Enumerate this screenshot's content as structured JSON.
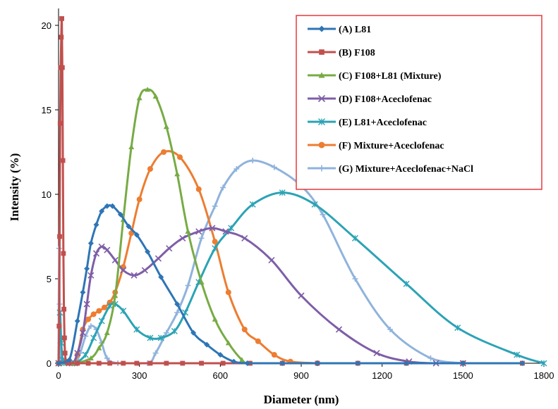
{
  "chart_data": {
    "type": "line",
    "xlabel": "Diameter (nm)",
    "ylabel": "Intensity (%)",
    "xlim": [
      0,
      1800
    ],
    "ylim": [
      0,
      21
    ],
    "xticks": [
      0,
      300,
      600,
      900,
      1200,
      1500,
      1800
    ],
    "yticks": [
      0,
      5,
      10,
      15,
      20
    ],
    "grid": false,
    "legend_position": "top-right",
    "series": [
      {
        "name": "(A) L81",
        "color": "#2e75b6",
        "marker": "diamond",
        "points": [
          [
            0,
            0
          ],
          [
            40,
            0.2
          ],
          [
            70,
            2.5
          ],
          [
            90,
            4.2
          ],
          [
            105,
            5.6
          ],
          [
            120,
            7.1
          ],
          [
            140,
            8.2
          ],
          [
            160,
            9.0
          ],
          [
            180,
            9.3
          ],
          [
            200,
            9.3
          ],
          [
            230,
            8.8
          ],
          [
            260,
            8.1
          ],
          [
            290,
            7.6
          ],
          [
            330,
            6.6
          ],
          [
            380,
            5.1
          ],
          [
            440,
            3.5
          ],
          [
            500,
            1.8
          ],
          [
            550,
            1.1
          ],
          [
            600,
            0.5
          ],
          [
            650,
            0.1
          ],
          [
            700,
            0
          ],
          [
            830,
            0
          ],
          [
            960,
            0
          ],
          [
            1110,
            0
          ],
          [
            1290,
            0
          ],
          [
            1500,
            0
          ],
          [
            1720,
            0
          ]
        ]
      },
      {
        "name": "(B) F108",
        "color": "#c0504d",
        "marker": "square",
        "points": [
          [
            0,
            0
          ],
          [
            2,
            2.2
          ],
          [
            4,
            7.5
          ],
          [
            6,
            14.2
          ],
          [
            8,
            17.5
          ],
          [
            10,
            19.3
          ],
          [
            12,
            20.4
          ],
          [
            14,
            17.5
          ],
          [
            16,
            12.0
          ],
          [
            18,
            6.5
          ],
          [
            20,
            3.2
          ],
          [
            22,
            1.5
          ],
          [
            24,
            0.6
          ],
          [
            28,
            0.1
          ],
          [
            35,
            0
          ],
          [
            70,
            0
          ],
          [
            110,
            0
          ],
          [
            150,
            0
          ],
          [
            190,
            0
          ],
          [
            240,
            0
          ],
          [
            290,
            0
          ],
          [
            340,
            0
          ],
          [
            400,
            0
          ],
          [
            460,
            0
          ],
          [
            530,
            0
          ],
          [
            610,
            0
          ],
          [
            710,
            0
          ],
          [
            830,
            0
          ],
          [
            960,
            0
          ],
          [
            1110,
            0
          ],
          [
            1290,
            0
          ],
          [
            1500,
            0
          ],
          [
            1720,
            0
          ]
        ]
      },
      {
        "name": "(C) F108+L81 (Mixture)",
        "color": "#77ab45",
        "marker": "triangle",
        "points": [
          [
            0,
            0
          ],
          [
            60,
            0
          ],
          [
            120,
            0.3
          ],
          [
            150,
            0.9
          ],
          [
            180,
            1.8
          ],
          [
            210,
            4.0
          ],
          [
            240,
            8.5
          ],
          [
            270,
            12.8
          ],
          [
            300,
            15.7
          ],
          [
            330,
            16.2
          ],
          [
            360,
            15.8
          ],
          [
            400,
            14.0
          ],
          [
            440,
            11.2
          ],
          [
            480,
            7.8
          ],
          [
            530,
            4.8
          ],
          [
            580,
            2.6
          ],
          [
            630,
            1.2
          ],
          [
            680,
            0.2
          ],
          [
            710,
            0
          ],
          [
            830,
            0
          ]
        ]
      },
      {
        "name": "(D) F108+Aceclofenac",
        "color": "#7e5ea7",
        "marker": "x",
        "points": [
          [
            0,
            0
          ],
          [
            50,
            0
          ],
          [
            70,
            0.6
          ],
          [
            90,
            1.8
          ],
          [
            105,
            3.5
          ],
          [
            120,
            5.2
          ],
          [
            140,
            6.5
          ],
          [
            160,
            6.9
          ],
          [
            180,
            6.7
          ],
          [
            210,
            6.1
          ],
          [
            240,
            5.5
          ],
          [
            280,
            5.2
          ],
          [
            320,
            5.5
          ],
          [
            370,
            6.2
          ],
          [
            410,
            6.8
          ],
          [
            460,
            7.4
          ],
          [
            520,
            7.8
          ],
          [
            570,
            8.0
          ],
          [
            620,
            7.8
          ],
          [
            690,
            7.4
          ],
          [
            790,
            6.1
          ],
          [
            900,
            4.0
          ],
          [
            1040,
            2.0
          ],
          [
            1180,
            0.6
          ],
          [
            1300,
            0.1
          ],
          [
            1400,
            0
          ],
          [
            1500,
            0
          ]
        ]
      },
      {
        "name": "(E) L81+Aceclofenac",
        "color": "#2ba3b5",
        "marker": "asterisk",
        "points": [
          [
            0,
            0
          ],
          [
            5,
            3.0
          ],
          [
            10,
            1.2
          ],
          [
            15,
            0.2
          ],
          [
            20,
            0
          ],
          [
            60,
            0
          ],
          [
            100,
            0.5
          ],
          [
            130,
            1.5
          ],
          [
            160,
            2.5
          ],
          [
            190,
            3.4
          ],
          [
            210,
            3.5
          ],
          [
            240,
            3.1
          ],
          [
            290,
            2.0
          ],
          [
            340,
            1.5
          ],
          [
            380,
            1.5
          ],
          [
            430,
            1.9
          ],
          [
            470,
            3.0
          ],
          [
            520,
            4.8
          ],
          [
            580,
            6.8
          ],
          [
            640,
            8.0
          ],
          [
            720,
            9.4
          ],
          [
            830,
            10.1
          ],
          [
            950,
            9.4
          ],
          [
            1100,
            7.4
          ],
          [
            1290,
            4.7
          ],
          [
            1480,
            2.1
          ],
          [
            1700,
            0.5
          ],
          [
            1800,
            0
          ]
        ]
      },
      {
        "name": "(F) Mixture+Aceclofenac",
        "color": "#ed7d31",
        "marker": "circle",
        "points": [
          [
            0,
            0
          ],
          [
            50,
            0
          ],
          [
            70,
            0.5
          ],
          [
            90,
            2.0
          ],
          [
            110,
            2.6
          ],
          [
            130,
            2.9
          ],
          [
            150,
            3.1
          ],
          [
            170,
            3.3
          ],
          [
            190,
            3.6
          ],
          [
            210,
            4.2
          ],
          [
            240,
            5.7
          ],
          [
            270,
            7.7
          ],
          [
            300,
            9.7
          ],
          [
            340,
            11.5
          ],
          [
            390,
            12.5
          ],
          [
            450,
            12.2
          ],
          [
            520,
            10.3
          ],
          [
            580,
            7.2
          ],
          [
            630,
            4.2
          ],
          [
            690,
            2.0
          ],
          [
            740,
            1.3
          ],
          [
            800,
            0.5
          ],
          [
            860,
            0.1
          ],
          [
            960,
            0
          ]
        ]
      },
      {
        "name": "(G) Mixture+Aceclofenac+NaCl",
        "color": "#8fb3dc",
        "marker": "plus",
        "points": [
          [
            0,
            0
          ],
          [
            2,
            6.8
          ],
          [
            4,
            3.5
          ],
          [
            6,
            1.2
          ],
          [
            8,
            0.3
          ],
          [
            10,
            0
          ],
          [
            60,
            0
          ],
          [
            80,
            0.6
          ],
          [
            100,
            1.6
          ],
          [
            120,
            2.2
          ],
          [
            140,
            2.0
          ],
          [
            160,
            1.2
          ],
          [
            180,
            0.3
          ],
          [
            220,
            0
          ],
          [
            330,
            0
          ],
          [
            360,
            0.6
          ],
          [
            400,
            1.8
          ],
          [
            440,
            3.0
          ],
          [
            480,
            4.6
          ],
          [
            530,
            7.4
          ],
          [
            580,
            9.3
          ],
          [
            610,
            10.4
          ],
          [
            660,
            11.5
          ],
          [
            720,
            12.0
          ],
          [
            800,
            11.6
          ],
          [
            900,
            10.5
          ],
          [
            980,
            8.8
          ],
          [
            1100,
            5.0
          ],
          [
            1230,
            2.0
          ],
          [
            1380,
            0.3
          ],
          [
            1500,
            0
          ]
        ]
      }
    ]
  }
}
